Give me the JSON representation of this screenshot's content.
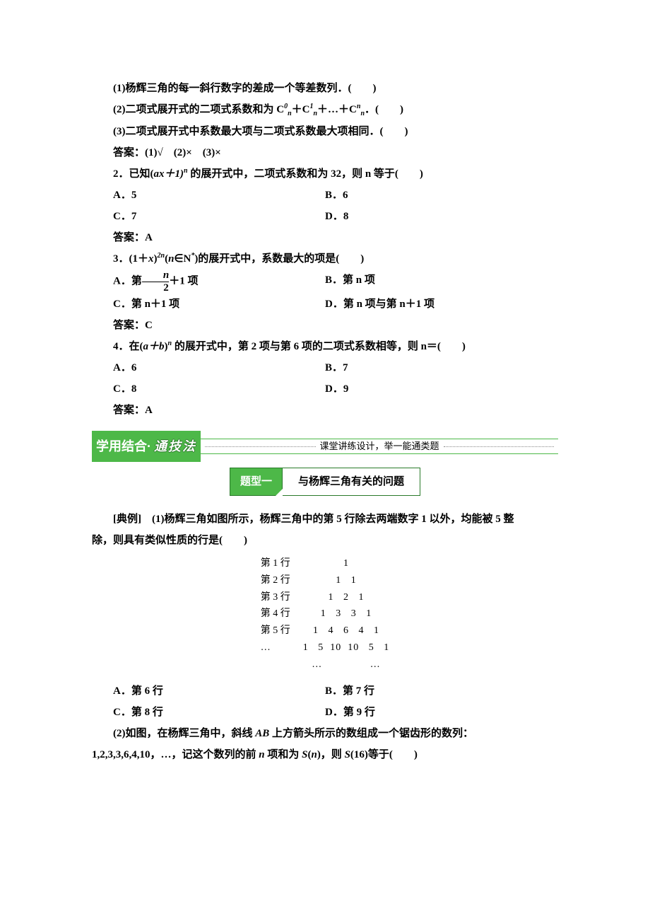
{
  "q1": {
    "s1": "(1)杨辉三角的每一斜行数字的差成一个等差数列．(　　)",
    "s2_pre": "(2)二项式展开式的二项式系数和为 C",
    "s2_mid": "＋C",
    "s2_mid2": "＋…＋C",
    "s2_post": "．(　　)",
    "s3": "(3)二项式展开式中系数最大项与二项式系数最大项相同．(　　)",
    "ans": "答案：(1)√　(2)×　(3)×"
  },
  "q2": {
    "stem_pre": "2．已知(",
    "stem_axp1": "ax＋1)",
    "stem_post": " 的展开式中，二项式系数和为 32，则 n 等于(　　)",
    "A": "A．5",
    "B": "B．6",
    "C": "C．7",
    "D": "D．8",
    "ans": "答案：A"
  },
  "q3": {
    "stem_pre": "3．(1＋",
    "stem_x": "x",
    "stem_paren": ")",
    "stem_exp1": "2",
    "stem_exp2": "n",
    "stem_nin_pre": "(",
    "stem_nin_n": "n",
    "stem_nin_in": "∈N",
    "stem_star": "*",
    "stem_post": ")的展开式中，系数最大的项是(　　)",
    "A_pre": "A．第",
    "A_frac_top": "n",
    "A_frac_bot": "2",
    "A_post": "＋1 项",
    "B": "B．第 n 项",
    "C": "C．第 n＋1 项",
    "D": "D．第 n 项与第 n＋1 项",
    "ans": "答案：C"
  },
  "q4": {
    "stem_pre": "4．在(",
    "stem_ab": "a＋b",
    "stem_paren": ")",
    "stem_post": " 的展开式中，第 2 项与第 6 项的二项式系数相等，则 n＝(　　)",
    "A": "A．6",
    "B": "B．7",
    "C": "C．8",
    "D": "D．9",
    "ans": "答案：A"
  },
  "banner": {
    "left1": "学用结合·",
    "left2": "通技法",
    "right": "课堂讲练设计，举一能通类题"
  },
  "topic": {
    "tag": "题型一",
    "title": "与杨辉三角有关的问题"
  },
  "example": {
    "line1": "[典例]　(1)杨辉三角如图所示，杨辉三角中的第 5 行除去两端数字 1 以外，均能被 5 整",
    "line2": "除，则具有类似性质的行是(　　)"
  },
  "pascal": {
    "labels": [
      "",
      "第 1 行",
      "第 2 行",
      "第 3 行",
      "第 4 行",
      "第 5 行",
      "…"
    ],
    "rows": [
      "1",
      "1   1",
      "1   2   1",
      "1   3   3   1",
      "1   4   6   4   1",
      "1   5  10  10   5   1",
      "…               …"
    ]
  },
  "q5opts": {
    "A": "A．第 6 行",
    "B": "B．第 7 行",
    "C": "C．第 8 行",
    "D": "D．第 9 行"
  },
  "sub2": {
    "pre": "(2)如图，在杨辉三角中，斜线 ",
    "AB": "AB",
    "post": " 上方箭头所示的数组成一个锯齿形的数列：",
    "line2_pre": "1,2,3,3,6,4,10，…，记这个数列的前 ",
    "line2_n1": "n",
    "line2_mid": " 项和为 ",
    "line2_Sn_S": "S",
    "line2_Sn_n": "n",
    "line2_paren": "(",
    "line2_close": ")，则 ",
    "line2_S16": "S",
    "line2_16paren": "(16)等于(　　)"
  },
  "style": {
    "banner_bg": "#4db848",
    "banner_fg": "#ffffff",
    "text_color": "#000000",
    "page_bg": "#ffffff"
  }
}
